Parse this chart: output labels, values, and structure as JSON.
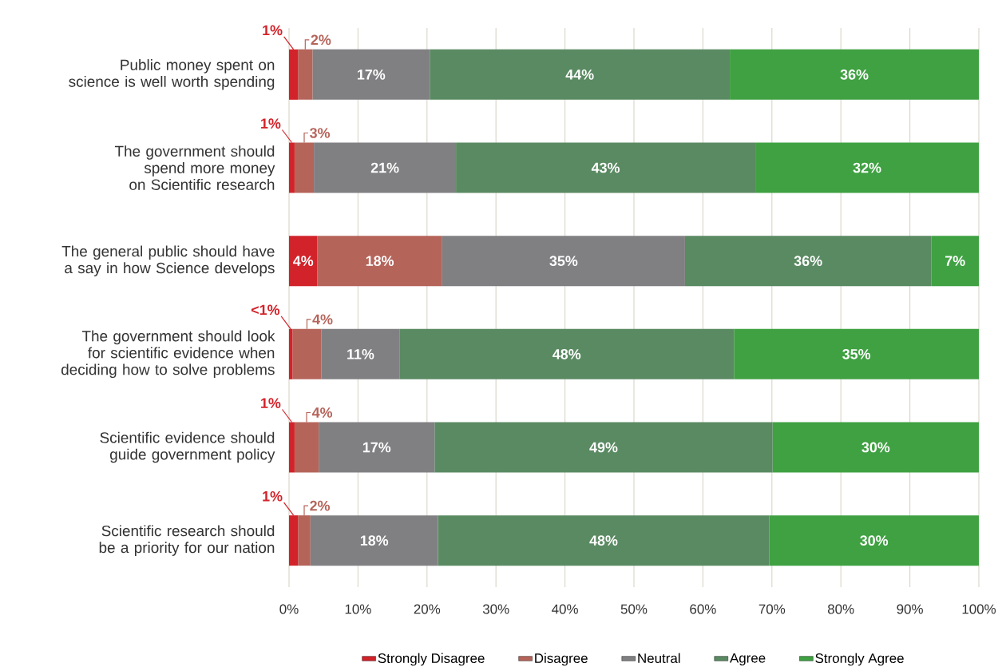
{
  "chart_data": {
    "type": "bar",
    "orientation": "horizontal",
    "stacked": true,
    "categories": [
      "Public money spent on science is well worth spending",
      "The government should spend more money on Scientific research",
      "The general public should have a say in how Science develops",
      "The government should look for scientific evidence when deciding how to solve problems",
      "Scientific evidence should guide government policy",
      "Scientific research should be a priority for our nation"
    ],
    "series": [
      {
        "name": "Strongly Disagree",
        "color": "#d2232a",
        "values": [
          1.3,
          0.8,
          4.1,
          0.5,
          0.8,
          1.3
        ],
        "value_labels": [
          "1%",
          "1%",
          "4%",
          "<1%",
          "1%",
          "1%"
        ]
      },
      {
        "name": "Disagree",
        "color": "#b5645a",
        "values": [
          2.1,
          2.8,
          18.1,
          4.2,
          3.5,
          1.8
        ],
        "value_labels": [
          "2%",
          "3%",
          "18%",
          "4%",
          "4%",
          "2%"
        ]
      },
      {
        "name": "Neutral",
        "color": "#808083",
        "values": [
          17.0,
          20.6,
          35.2,
          11.3,
          16.8,
          18.5
        ],
        "value_labels": [
          "17%",
          "21%",
          "35%",
          "11%",
          "17%",
          "18%"
        ]
      },
      {
        "name": "Agree",
        "color": "#5a8a62",
        "values": [
          43.5,
          43.4,
          35.7,
          48.5,
          49.0,
          48.0
        ],
        "value_labels": [
          "44%",
          "43%",
          "36%",
          "48%",
          "49%",
          "48%"
        ]
      },
      {
        "name": "Strongly Agree",
        "color": "#3fa142",
        "values": [
          36.1,
          32.4,
          6.9,
          35.5,
          29.9,
          30.4
        ],
        "value_labels": [
          "36%",
          "32%",
          "7%",
          "35%",
          "30%",
          "30%"
        ]
      }
    ],
    "xlim": [
      0,
      100
    ],
    "xticks": [
      {
        "value": 0,
        "label": "0%"
      },
      {
        "value": 10,
        "label": "10%"
      },
      {
        "value": 20,
        "label": "20%"
      },
      {
        "value": 30,
        "label": "30%"
      },
      {
        "value": 40,
        "label": "40%"
      },
      {
        "value": 50,
        "label": "50%"
      },
      {
        "value": 60,
        "label": "60%"
      },
      {
        "value": 70,
        "label": "70%"
      },
      {
        "value": 80,
        "label": "80%"
      },
      {
        "value": 90,
        "label": "90%"
      },
      {
        "value": 100,
        "label": "100%"
      }
    ],
    "grid": "x",
    "legend": "bottom"
  }
}
